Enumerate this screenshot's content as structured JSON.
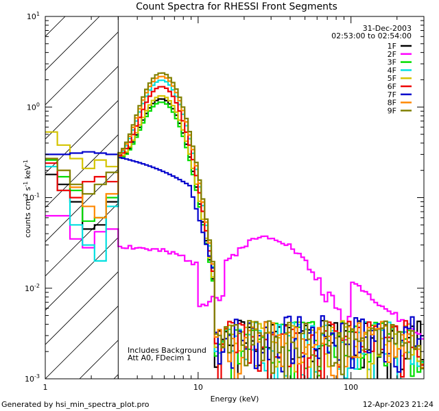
{
  "chart_data": {
    "type": "line",
    "title": "Count Spectra for RHESSI Front Segments",
    "xlabel": "Energy (keV)",
    "ylabel": {
      "base": "counts cm",
      "sup1": "-2",
      "mid1": " s",
      "sup2": "-1",
      "mid2": " keV",
      "sup3": "-1"
    },
    "xscale": "log",
    "yscale": "log",
    "xlim": [
      1,
      300
    ],
    "ylim": [
      0.001,
      10
    ],
    "x_ticks": [
      {
        "v": 1,
        "label": "1"
      },
      {
        "v": 10,
        "label": "10"
      },
      {
        "v": 100,
        "label": "100"
      }
    ],
    "y_ticks": [
      {
        "v": 0.001,
        "base": "10",
        "exp": "-3"
      },
      {
        "v": 0.01,
        "base": "10",
        "exp": "-2"
      },
      {
        "v": 0.1,
        "base": "10",
        "exp": "-1"
      },
      {
        "v": 1,
        "base": "10",
        "exp": "0"
      },
      {
        "v": 10,
        "base": "10",
        "exp": "1"
      }
    ],
    "hatched_region_kev": [
      1,
      3
    ],
    "date": "31-Dec-2003",
    "time_range": "02:53:00 to 02:54:00",
    "annotations": [
      "Includes Background",
      "Att A0, FDecim 1"
    ],
    "footer_left": "Generated by hsi_min_spectra_plot.pro",
    "footer_right": "12-Apr-2023 21:24",
    "series": [
      {
        "name": "1F",
        "color": "#000000",
        "low": [
          0.18,
          0.14,
          0.09,
          0.045,
          0.05,
          0.09
        ],
        "peak": 1.15,
        "noise_seed": 1
      },
      {
        "name": "2F",
        "color": "#ff00ff",
        "low": [
          0.063,
          0.063,
          0.035,
          0.028,
          0.042,
          0.045
        ],
        "peak": 0,
        "noise_seed": 2
      },
      {
        "name": "3F",
        "color": "#00dd00",
        "low": [
          0.26,
          0.17,
          0.12,
          0.055,
          0.06,
          0.1
        ],
        "peak": 1.05,
        "noise_seed": 3
      },
      {
        "name": "4F",
        "color": "#00e0e0",
        "low": [
          0.22,
          0.12,
          0.05,
          0.03,
          0.02,
          0.08
        ],
        "peak": 1.9,
        "noise_seed": 4
      },
      {
        "name": "5F",
        "color": "#d4c400",
        "low": [
          0.53,
          0.38,
          0.27,
          0.21,
          0.26,
          0.22
        ],
        "peak": 1.25,
        "noise_seed": 5
      },
      {
        "name": "6F",
        "color": "#ee0000",
        "low": [
          0.24,
          0.12,
          0.1,
          0.15,
          0.17,
          0.15
        ],
        "peak": 1.6,
        "noise_seed": 6
      },
      {
        "name": "7F",
        "color": "#0000cc",
        "low": [
          0.3,
          0.3,
          0.31,
          0.32,
          0.31,
          0.3
        ],
        "peak": 0,
        "noise_seed": 7
      },
      {
        "name": "8F",
        "color": "#ff8800",
        "low": [
          0.27,
          0.2,
          0.13,
          0.08,
          0.06,
          0.11
        ],
        "peak": 2.1,
        "noise_seed": 8
      },
      {
        "name": "9F",
        "color": "#808000",
        "low": [
          0.27,
          0.2,
          0.14,
          0.11,
          0.14,
          0.19
        ],
        "peak": 2.3,
        "noise_seed": 9
      }
    ]
  }
}
